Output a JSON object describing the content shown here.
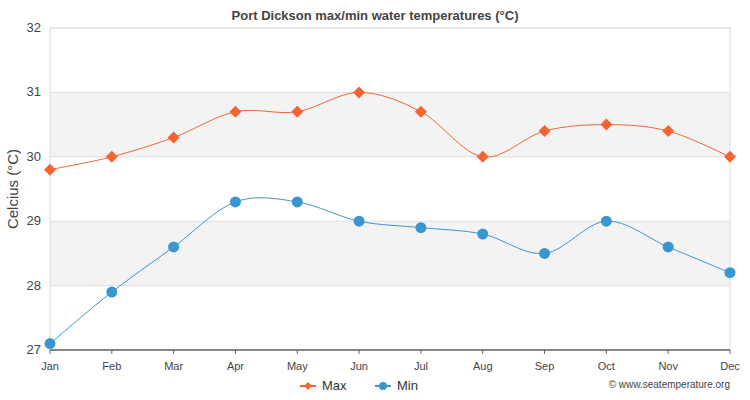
{
  "chart_data": {
    "type": "line",
    "title": "Port Dickson max/min water temperatures (°C)",
    "y_label": "Celcius (°C)",
    "annotation": "© www.seatemperature.org",
    "categories": [
      "Jan",
      "Feb",
      "Mar",
      "Apr",
      "May",
      "Jun",
      "Jul",
      "Aug",
      "Sep",
      "Oct",
      "Nov",
      "Dec"
    ],
    "series": [
      {
        "name": "Max",
        "color": "#f26532",
        "marker": "diamond",
        "line_style": "solid",
        "values": [
          29.8,
          30.0,
          30.3,
          30.7,
          30.7,
          31.0,
          30.7,
          30.0,
          30.4,
          30.5,
          30.4,
          30.0
        ]
      },
      {
        "name": "Min",
        "color": "#3a96cf",
        "marker": "circle",
        "line_style": "solid",
        "values": [
          27.1,
          27.9,
          28.6,
          29.3,
          29.3,
          29.0,
          28.9,
          28.8,
          28.5,
          29.0,
          28.6,
          28.2
        ]
      }
    ],
    "ylim": [
      27,
      32
    ],
    "yticks": [
      27,
      28,
      29,
      30,
      31,
      32
    ],
    "grid": true,
    "legend": "bottom"
  }
}
